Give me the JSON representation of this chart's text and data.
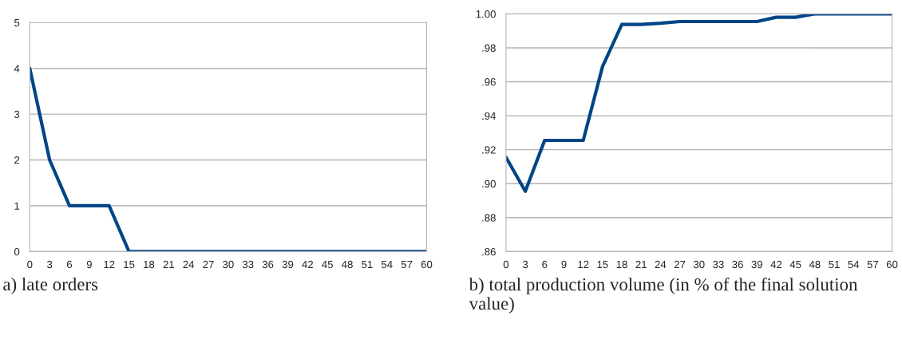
{
  "chart_data": [
    {
      "type": "line",
      "categories": [
        "0",
        "3",
        "6",
        "9",
        "12",
        "15",
        "18",
        "21",
        "24",
        "27",
        "30",
        "33",
        "36",
        "39",
        "42",
        "45",
        "48",
        "51",
        "54",
        "57",
        "60"
      ],
      "series": [
        {
          "color": "#004586",
          "values": [
            4,
            2,
            1,
            1,
            1,
            0,
            0,
            0,
            0,
            0,
            0,
            0,
            0,
            0,
            0,
            0,
            0,
            0,
            0,
            0,
            0
          ]
        }
      ],
      "ylim": [
        0,
        5
      ],
      "yticks": [
        0,
        1,
        2,
        3,
        4,
        5
      ],
      "grid": "y",
      "marker": "none",
      "line_style": "solid",
      "annotations": [
        "a) late orders"
      ]
    },
    {
      "type": "line",
      "categories": [
        "0",
        "3",
        "6",
        "9",
        "12",
        "15",
        "18",
        "21",
        "24",
        "27",
        "30",
        "33",
        "36",
        "39",
        "42",
        "45",
        "48",
        "51",
        "54",
        "57",
        "60"
      ],
      "series": [
        {
          "color": "#004586",
          "values": [
            0.9155,
            0.8955,
            0.9255,
            0.9255,
            0.9255,
            0.969,
            0.9938,
            0.9938,
            0.9945,
            0.9955,
            0.9955,
            0.9955,
            0.9955,
            0.9955,
            0.998,
            0.998,
            1.0,
            1.0,
            1.0,
            1.0,
            1.0
          ]
        }
      ],
      "ylim": [
        0.86,
        1.0
      ],
      "yticks": [
        {
          "value": 0.86,
          "label": ".86"
        },
        {
          "value": 0.88,
          "label": ".88"
        },
        {
          "value": 0.9,
          "label": ".90"
        },
        {
          "value": 0.92,
          "label": ".92"
        },
        {
          "value": 0.94,
          "label": ".94"
        },
        {
          "value": 0.96,
          "label": ".96"
        },
        {
          "value": 0.98,
          "label": ".98"
        },
        {
          "value": 1.0,
          "label": "1.00"
        }
      ],
      "grid": "y",
      "marker": "none",
      "line_style": "solid",
      "annotations": [
        "b) total production volume (in % of the final solution value)"
      ]
    }
  ]
}
